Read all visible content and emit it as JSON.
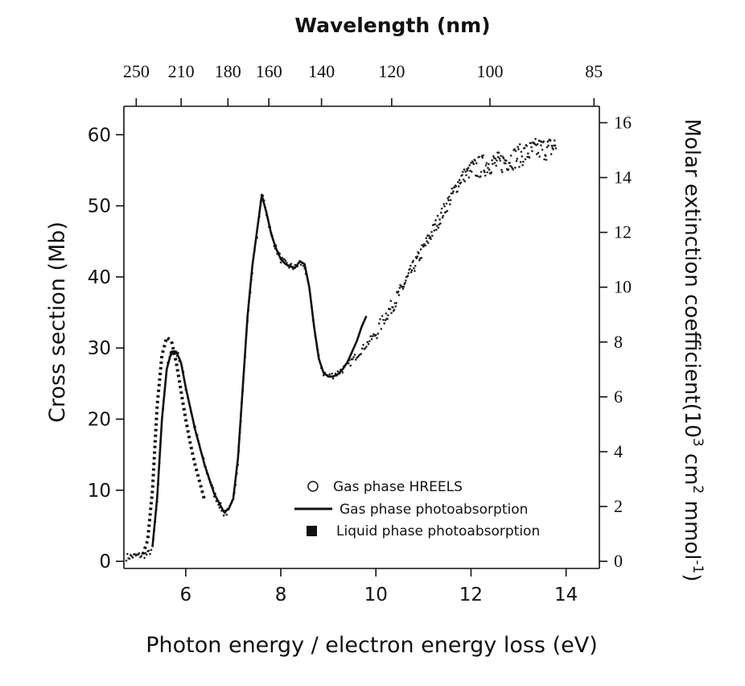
{
  "chart_data": {
    "type": "line",
    "xlabel": "Photon energy / electron energy loss (eV)",
    "ylabel": "Cross section (Mb)",
    "y2label_main": "Molar extinction coefficient(10",
    "y2label_sup1": "3",
    "y2label_mid": " cm",
    "y2label_sup2": "2",
    "y2label_end": " mmol",
    "y2label_sup3": "-1",
    "y2label_close": ")",
    "top_axis_label": "Wavelength (nm)",
    "xlim": [
      4.7,
      14.7
    ],
    "ylim": [
      -1.0,
      64.0
    ],
    "y2lim": [
      -0.26,
      16.6
    ],
    "x_ticks": [
      6,
      8,
      10,
      12,
      14
    ],
    "x_tick_labels": [
      "6",
      "8",
      "10",
      "12",
      "14"
    ],
    "y_ticks": [
      0,
      10,
      20,
      30,
      40,
      50,
      60
    ],
    "y_tick_labels": [
      "0",
      "10",
      "20",
      "30",
      "40",
      "50",
      "60"
    ],
    "y2_ticks": [
      0,
      2,
      4,
      6,
      8,
      10,
      12,
      14,
      16
    ],
    "y2_tick_labels": [
      "0",
      "2",
      "4",
      "6",
      "8",
      "10",
      "12",
      "14",
      "16"
    ],
    "top_ticks_nm": [
      250,
      210,
      180,
      160,
      140,
      120,
      100,
      85
    ],
    "top_tick_labels": [
      "250",
      "210",
      "180",
      "160",
      "140",
      "120",
      "100",
      "85"
    ],
    "grid": false,
    "legend_position": "bottom-right",
    "series": [
      {
        "name": "Gas phase HREELS",
        "marker": "dots",
        "x": [
          4.75,
          5.0,
          5.2,
          5.3,
          5.4,
          5.5,
          5.6,
          5.7,
          5.8,
          5.9,
          6.0,
          6.2,
          6.4,
          6.6,
          6.8,
          6.9,
          7.0,
          7.1,
          7.2,
          7.3,
          7.4,
          7.5,
          7.6,
          7.65,
          7.7,
          7.8,
          7.9,
          8.0,
          8.1,
          8.2,
          8.3,
          8.4,
          8.5,
          8.6,
          8.7,
          8.8,
          8.9,
          9.0,
          9.1,
          9.2,
          9.3,
          9.4,
          9.6,
          9.8,
          10.0,
          10.2,
          10.4,
          10.6,
          10.8,
          11.0,
          11.2,
          11.4,
          11.6,
          11.8,
          12.0,
          12.2,
          12.4,
          12.6,
          12.8,
          13.0,
          13.2,
          13.4,
          13.6,
          13.8
        ],
        "values": [
          0.6,
          0.8,
          1.0,
          1.8,
          8.0,
          20.0,
          27.0,
          29.5,
          29.5,
          28.0,
          24.5,
          18.5,
          13.5,
          9.5,
          6.8,
          7.0,
          8.5,
          14.0,
          24.0,
          34.0,
          41.0,
          46.0,
          51.5,
          51.0,
          49.0,
          46.0,
          44.0,
          42.5,
          41.8,
          41.5,
          41.3,
          42.0,
          41.5,
          38.0,
          33.0,
          28.5,
          26.5,
          26.0,
          26.2,
          26.5,
          27.0,
          27.5,
          29.0,
          30.5,
          32.0,
          34.5,
          36.5,
          39.0,
          41.5,
          44.0,
          46.5,
          49.0,
          51.5,
          54.0,
          55.0,
          55.5,
          56.0,
          56.0,
          56.5,
          57.0,
          57.5,
          58.0,
          58.0,
          58.5
        ]
      },
      {
        "name": "Gas phase photoabsorption",
        "marker": "line",
        "x": [
          5.3,
          5.4,
          5.5,
          5.6,
          5.7,
          5.8,
          5.9,
          6.0,
          6.2,
          6.4,
          6.6,
          6.8,
          6.9,
          7.0,
          7.1,
          7.2,
          7.3,
          7.4,
          7.5,
          7.6,
          7.7,
          7.8,
          7.9,
          8.0,
          8.1,
          8.2,
          8.3,
          8.4,
          8.5,
          8.6,
          8.7,
          8.8,
          8.9,
          9.0,
          9.1,
          9.2,
          9.3,
          9.4,
          9.5,
          9.6,
          9.7,
          9.8
        ],
        "values": [
          2.0,
          9.0,
          20.0,
          27.0,
          29.5,
          29.5,
          28.0,
          24.5,
          18.5,
          13.5,
          9.5,
          7.0,
          7.3,
          8.8,
          14.5,
          24.5,
          34.5,
          41.5,
          46.5,
          51.5,
          49.0,
          46.0,
          44.0,
          42.5,
          41.8,
          41.5,
          41.3,
          42.2,
          41.8,
          38.5,
          33.0,
          28.5,
          26.5,
          26.0,
          26.0,
          26.3,
          27.0,
          28.0,
          29.5,
          31.0,
          33.0,
          34.5
        ]
      },
      {
        "name": "Liquid phase photoabsorption",
        "marker": "dashed",
        "x": [
          5.1,
          5.2,
          5.3,
          5.4,
          5.5,
          5.6,
          5.7,
          5.8,
          5.9,
          6.0,
          6.1,
          6.2,
          6.3,
          6.4
        ],
        "values": [
          1.0,
          3.0,
          10.0,
          22.0,
          29.0,
          31.5,
          31.0,
          28.0,
          24.0,
          20.0,
          16.5,
          13.5,
          11.0,
          8.5
        ]
      }
    ]
  }
}
